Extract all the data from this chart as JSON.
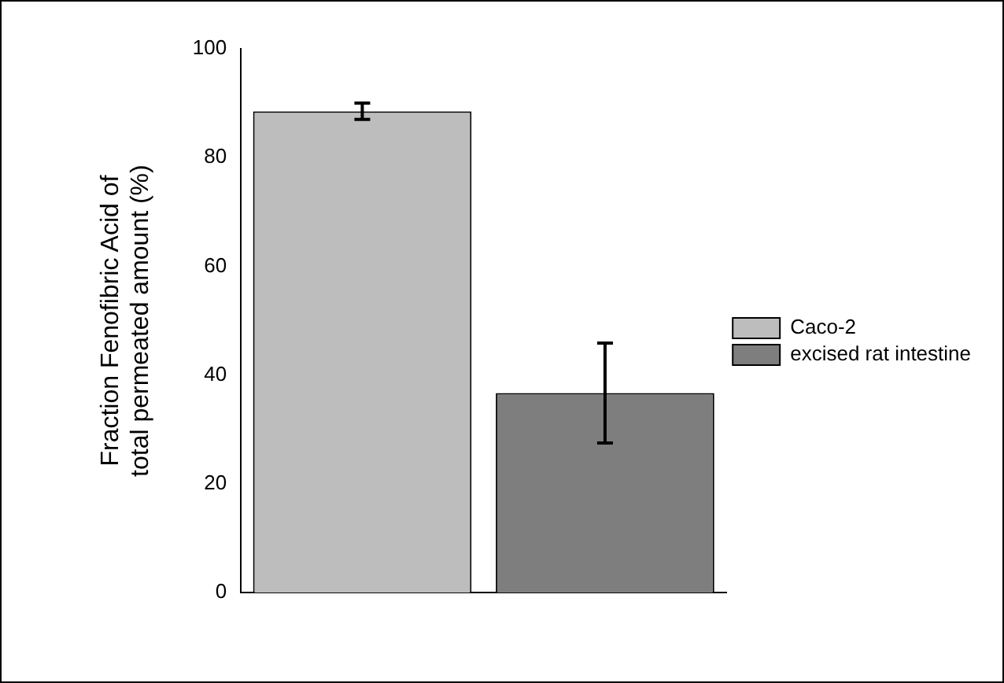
{
  "chart_data": {
    "type": "bar",
    "ylabel": "Fraction Fenofibric Acid of total permeated amount (%)",
    "categories": [
      null,
      null
    ],
    "series": [
      {
        "name": "Caco-2",
        "color": "#bdbdbd",
        "values": [
          88.5,
          null
        ],
        "errors": [
          1.5,
          null
        ]
      },
      {
        "name": "excised rat intestine",
        "color": "#7e7e7e",
        "values": [
          null,
          36.7
        ],
        "errors": [
          null,
          9.2
        ]
      }
    ],
    "ylim": [
      0,
      100
    ],
    "yticks": [
      0,
      20,
      40,
      60,
      80,
      100
    ],
    "grid": false,
    "legend": "right"
  }
}
